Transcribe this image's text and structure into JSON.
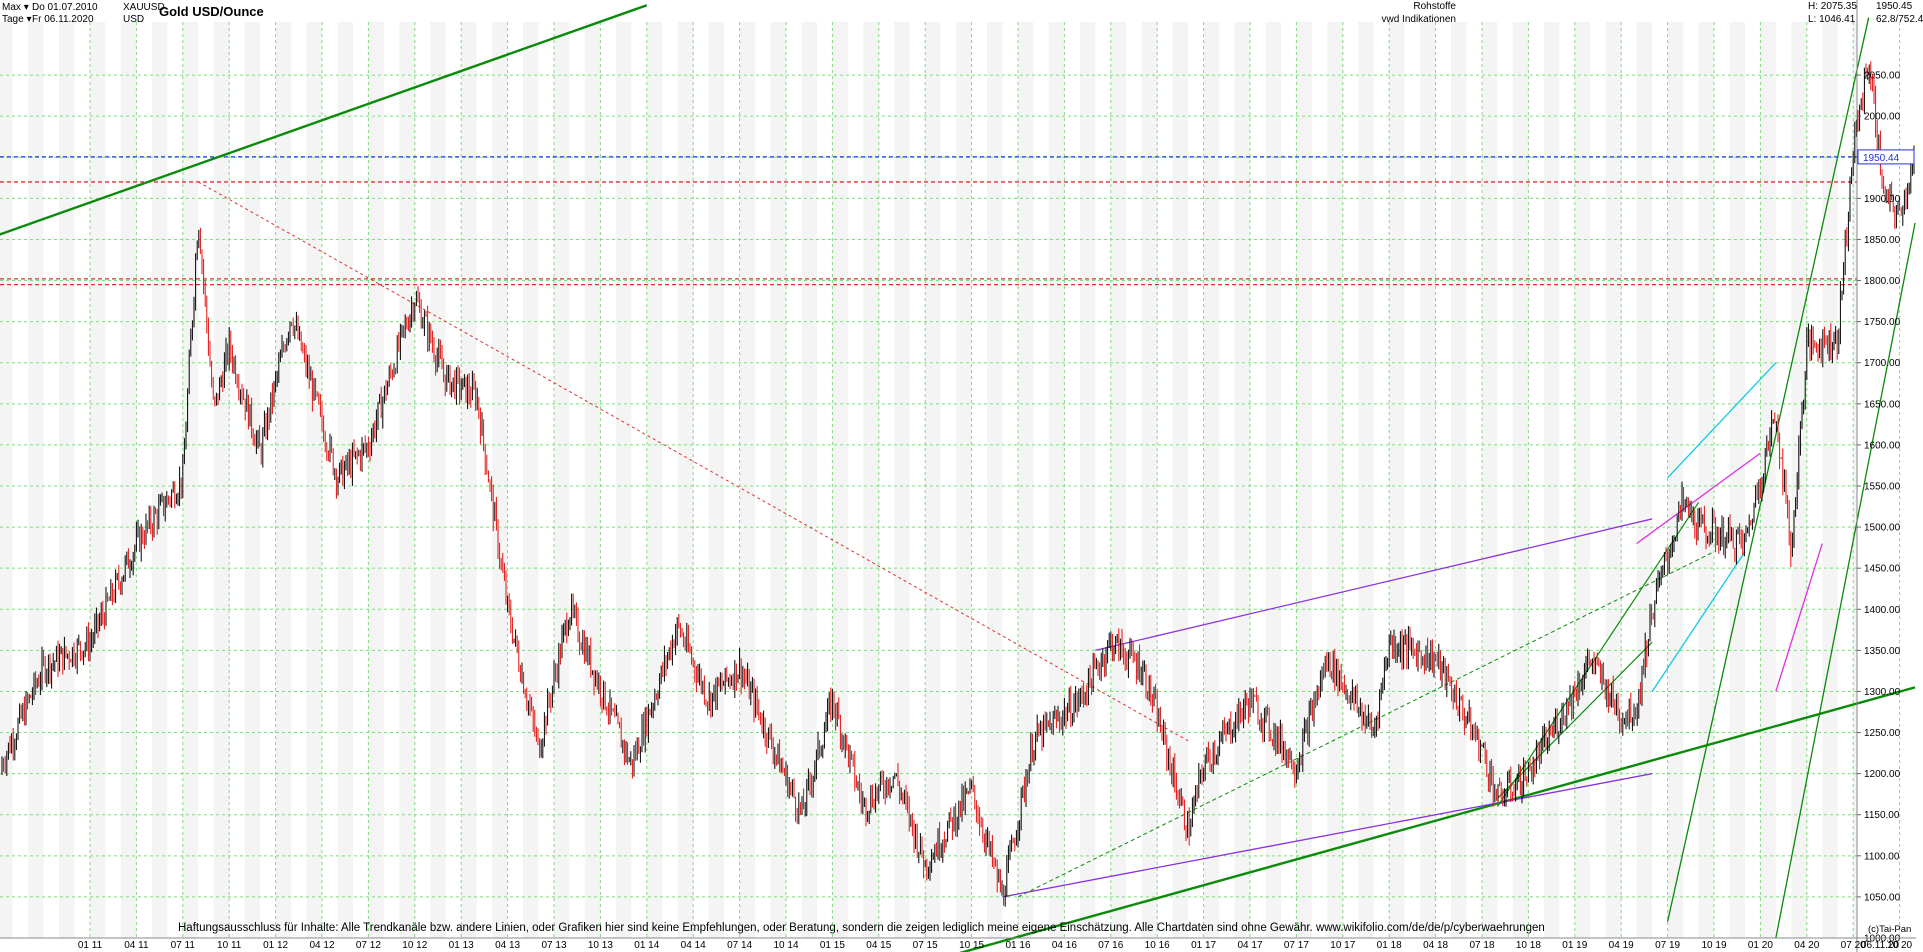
{
  "header": {
    "period_label": "Max",
    "from_label": "Do 01.07.2010",
    "interval_label": "Tage",
    "to_label": "Fr 06.11.2020",
    "symbol": "XAUUSD",
    "currency": "USD",
    "title": "Gold USD/Ounce"
  },
  "right_header": {
    "category": "Rohstoffe",
    "source": "vwd Indikationen",
    "high": "H: 2075.35",
    "low": "L: 1046.41",
    "last": "1950.45",
    "ratio": "62.8/752.4"
  },
  "footer": {
    "disclaimer": "Haftungsausschluss für Inhalte: Alle Trendkanäle bzw. andere Linien, oder Grafiken hier sind keine Empfehlungen, oder Beratung, sondern die zeigen lediglich meine eigene Einschätzung. Alle Chartdaten sind ohne Gewähr.  www.wikifolio.com/de/de/p/cyberwaehrungen",
    "copyright": "(c)Tai-Pan",
    "last_date": "06.11.20"
  },
  "colors": {
    "up": "#000000",
    "down": "#e01010",
    "grid": "#7fdc7f",
    "trend_green": "#0a8a0a",
    "trend_purple": "#8a30e0",
    "cyan": "#10c8e8",
    "magenta": "#e030e0",
    "red_dashed": "#e03030",
    "blue_dashed": "#2030e0"
  },
  "chart_data": {
    "type": "candlestick",
    "title": "Gold USD/Ounce",
    "ylim": [
      1000,
      2100
    ],
    "yticks": [
      1000,
      1050,
      1100,
      1150,
      1200,
      1250,
      1300,
      1350,
      1400,
      1450,
      1500,
      1550,
      1600,
      1650,
      1700,
      1750,
      1800,
      1850,
      1900,
      1950,
      2000,
      2050
    ],
    "xticks": [
      "01 11",
      "04 11",
      "07 11",
      "10 11",
      "01 12",
      "04 12",
      "07 12",
      "10 12",
      "01 13",
      "04 13",
      "07 13",
      "10 13",
      "01 14",
      "04 14",
      "07 14",
      "10 14",
      "01 15",
      "04 15",
      "07 15",
      "10 15",
      "01 16",
      "04 16",
      "07 16",
      "10 16",
      "01 17",
      "04 17",
      "07 17",
      "10 17",
      "01 18",
      "04 18",
      "07 18",
      "10 18",
      "01 19",
      "04 19",
      "07 19",
      "10 19",
      "01 20",
      "04 20",
      "07 20",
      "10 20"
    ],
    "last_price_label": "1950.44",
    "grid": true,
    "price_path": [
      [
        "07 10",
        1200
      ],
      [
        "10 10",
        1330
      ],
      [
        "01 11",
        1360
      ],
      [
        "04 11",
        1480
      ],
      [
        "07 11",
        1560
      ],
      [
        "08 11",
        1880
      ],
      [
        "09 11",
        1640
      ],
      [
        "10 11",
        1720
      ],
      [
        "12 11",
        1590
      ],
      [
        "02 12",
        1760
      ],
      [
        "05 12",
        1560
      ],
      [
        "07 12",
        1600
      ],
      [
        "10 12",
        1780
      ],
      [
        "12 12",
        1680
      ],
      [
        "02 13",
        1660
      ],
      [
        "04 13",
        1400
      ],
      [
        "06 13",
        1230
      ],
      [
        "08 13",
        1400
      ],
      [
        "12 13",
        1210
      ],
      [
        "03 14",
        1380
      ],
      [
        "05 14",
        1290
      ],
      [
        "07 14",
        1330
      ],
      [
        "11 14",
        1150
      ],
      [
        "01 15",
        1290
      ],
      [
        "03 15",
        1160
      ],
      [
        "05 15",
        1200
      ],
      [
        "07 15",
        1090
      ],
      [
        "10 15",
        1180
      ],
      [
        "12 15",
        1050
      ],
      [
        "02 16",
        1240
      ],
      [
        "05 16",
        1290
      ],
      [
        "07 16",
        1360
      ],
      [
        "09 16",
        1330
      ],
      [
        "10 16",
        1270
      ],
      [
        "12 16",
        1130
      ],
      [
        "01 17",
        1210
      ],
      [
        "04 17",
        1290
      ],
      [
        "07 17",
        1210
      ],
      [
        "09 17",
        1340
      ],
      [
        "12 17",
        1250
      ],
      [
        "01 18",
        1360
      ],
      [
        "04 18",
        1340
      ],
      [
        "07 18",
        1230
      ],
      [
        "08 18",
        1170
      ],
      [
        "10 18",
        1200
      ],
      [
        "01 19",
        1300
      ],
      [
        "02 19",
        1340
      ],
      [
        "04 19",
        1270
      ],
      [
        "05 19",
        1280
      ],
      [
        "06 19",
        1400
      ],
      [
        "08 19",
        1530
      ],
      [
        "09 19",
        1500
      ],
      [
        "12 19",
        1480
      ],
      [
        "01 20",
        1560
      ],
      [
        "02 20",
        1640
      ],
      [
        "03 20",
        1470
      ],
      [
        "04 20",
        1720
      ],
      [
        "06 20",
        1730
      ],
      [
        "07 20",
        1960
      ],
      [
        "08 20",
        2070
      ],
      [
        "09 20",
        1900
      ],
      [
        "10 20",
        1880
      ],
      [
        "11 20",
        1950
      ]
    ],
    "lines": [
      {
        "kind": "horizontal",
        "style": "dashed",
        "color": "blue",
        "value": 1950.44
      },
      {
        "kind": "horizontal",
        "style": "dashed",
        "color": "red",
        "value": 1920
      },
      {
        "kind": "horizontal",
        "style": "dashed",
        "color": "red",
        "value": 1802
      },
      {
        "kind": "horizontal",
        "style": "dashed",
        "color": "red",
        "value": 1795
      }
    ]
  }
}
